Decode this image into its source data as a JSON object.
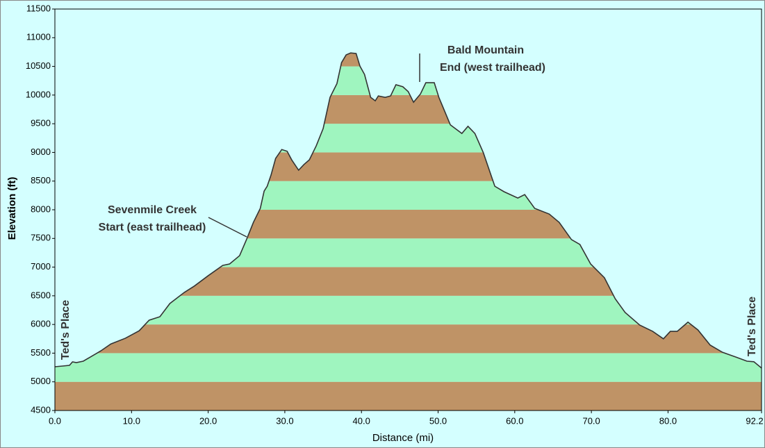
{
  "chart_data": {
    "type": "elevation-profile",
    "y_label": "Elevation (ft)",
    "x_label": "Distance (mi)",
    "annotations": [
      "Ted's Place",
      "Sevenmile Creek",
      "Start (east trailhead)",
      "Bald Mountain",
      "End (west trailhead)",
      "Ted's Place"
    ],
    "xlim": [
      0,
      92.2
    ],
    "ylim": [
      4500,
      11500
    ],
    "xticks": [
      {
        "value": 0,
        "label": "0.0"
      },
      {
        "value": 10,
        "label": "10.0"
      },
      {
        "value": 20,
        "label": "20.0"
      },
      {
        "value": 30,
        "label": "30.0"
      },
      {
        "value": 40,
        "label": "40.0"
      },
      {
        "value": 50,
        "label": "50.0"
      },
      {
        "value": 60,
        "label": "60.0"
      },
      {
        "value": 70,
        "label": "70.0"
      },
      {
        "value": 80,
        "label": "80.0"
      },
      92.2
    ],
    "yticks": [
      4500,
      5000,
      5500,
      6000,
      6500,
      7000,
      7500,
      8000,
      8500,
      9000,
      9500,
      10000,
      10500,
      11000,
      11500
    ],
    "band_colors": [
      "#bf9366",
      "#9ff5bf"
    ],
    "line_color": "#333333",
    "background": "#d4ffff",
    "x": [
      0,
      1.0,
      1.9,
      2.3,
      2.8,
      3.7,
      4.6,
      6.0,
      7.3,
      9.2,
      11.0,
      12.3,
      13.7,
      15.0,
      16.9,
      18.2,
      20.0,
      21.9,
      22.8,
      24.1,
      25.0,
      25.9,
      26.8,
      27.3,
      27.7,
      28.2,
      28.8,
      29.6,
      30.3,
      30.9,
      31.8,
      32.5,
      33.2,
      34.1,
      35.0,
      35.9,
      36.8,
      37.4,
      38.0,
      38.6,
      39.3,
      39.8,
      40.4,
      41.2,
      41.8,
      42.2,
      43.1,
      43.8,
      44.5,
      45.4,
      46.1,
      46.8,
      47.7,
      48.4,
      49.5,
      50.1,
      51.6,
      53.1,
      53.9,
      54.8,
      55.9,
      57.4,
      58.6,
      60.4,
      61.3,
      62.6,
      64.5,
      65.8,
      67.4,
      68.5,
      69.9,
      71.7,
      73.1,
      74.4,
      76.3,
      78.0,
      79.4,
      80.3,
      81.2,
      82.6,
      83.9,
      85.5,
      87.1,
      88.9,
      90.3,
      91.2,
      92.2
    ],
    "values": [
      5263,
      5275,
      5287,
      5348,
      5335,
      5360,
      5430,
      5540,
      5660,
      5760,
      5890,
      6075,
      6135,
      6365,
      6560,
      6670,
      6850,
      7030,
      7055,
      7200,
      7480,
      7780,
      8025,
      8325,
      8410,
      8605,
      8895,
      9050,
      9020,
      8870,
      8690,
      8790,
      8870,
      9115,
      9415,
      9960,
      10200,
      10565,
      10700,
      10735,
      10725,
      10505,
      10360,
      9960,
      9900,
      9985,
      9960,
      9985,
      10180,
      10145,
      10060,
      9875,
      10020,
      10215,
      10215,
      9960,
      9480,
      9330,
      9455,
      9330,
      8995,
      8410,
      8315,
      8205,
      8265,
      8025,
      7925,
      7780,
      7480,
      7395,
      7055,
      6815,
      6450,
      6210,
      5990,
      5880,
      5750,
      5880,
      5880,
      6040,
      5905,
      5640,
      5515,
      5430,
      5360,
      5350,
      5240
    ]
  }
}
